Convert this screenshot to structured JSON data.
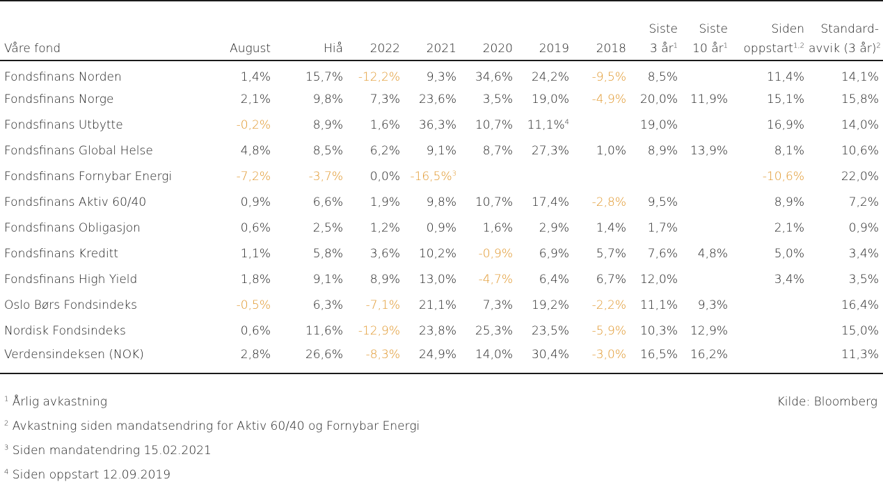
{
  "table": {
    "headers": [
      {
        "line1": "",
        "line2": "Våre fond",
        "sup": ""
      },
      {
        "line1": "",
        "line2": "August",
        "sup": ""
      },
      {
        "line1": "",
        "line2": "Hiå",
        "sup": ""
      },
      {
        "line1": "",
        "line2": "2022",
        "sup": ""
      },
      {
        "line1": "",
        "line2": "2021",
        "sup": ""
      },
      {
        "line1": "",
        "line2": "2020",
        "sup": ""
      },
      {
        "line1": "",
        "line2": "2019",
        "sup": ""
      },
      {
        "line1": "",
        "line2": "2018",
        "sup": ""
      },
      {
        "line1": "Siste",
        "line2": "3 år",
        "sup": "1"
      },
      {
        "line1": "Siste",
        "line2": "10 år",
        "sup": "1"
      },
      {
        "line1": "Siden",
        "line2": "oppstart",
        "sup": "1,2"
      },
      {
        "line1": "Standard-",
        "line2": "avvik (3 år)",
        "sup": "2"
      }
    ],
    "rows": [
      {
        "name": "Fondsfinans Norden",
        "cells": [
          {
            "v": "1,4%"
          },
          {
            "v": "15,7%"
          },
          {
            "v": "-12,2%",
            "neg": true
          },
          {
            "v": "9,3%"
          },
          {
            "v": "34,6%"
          },
          {
            "v": "24,2%"
          },
          {
            "v": "-9,5%",
            "neg": true
          },
          {
            "v": "8,5%"
          },
          {
            "v": ""
          },
          {
            "v": "11,4%"
          },
          {
            "v": "14,1%"
          }
        ]
      },
      {
        "name": "Fondsfinans Norge",
        "cells": [
          {
            "v": "2,1%"
          },
          {
            "v": "9,8%"
          },
          {
            "v": "7,3%"
          },
          {
            "v": "23,6%"
          },
          {
            "v": "3,5%"
          },
          {
            "v": "19,0%"
          },
          {
            "v": "-4,9%",
            "neg": true
          },
          {
            "v": "20,0%"
          },
          {
            "v": "11,9%"
          },
          {
            "v": "15,1%"
          },
          {
            "v": "15,8%"
          }
        ]
      },
      {
        "name": "Fondsfinans Utbytte",
        "cells": [
          {
            "v": "-0,2%",
            "neg": true
          },
          {
            "v": "8,9%"
          },
          {
            "v": "1,6%"
          },
          {
            "v": "36,3%"
          },
          {
            "v": "10,7%"
          },
          {
            "v": "11,1%",
            "sup": "4"
          },
          {
            "v": ""
          },
          {
            "v": "19,0%"
          },
          {
            "v": ""
          },
          {
            "v": "16,9%"
          },
          {
            "v": "14,0%"
          }
        ]
      },
      {
        "name": "Fondsfinans Global Helse",
        "cells": [
          {
            "v": "4,8%"
          },
          {
            "v": "8,5%"
          },
          {
            "v": "6,2%"
          },
          {
            "v": "9,1%"
          },
          {
            "v": "8,7%"
          },
          {
            "v": "27,3%"
          },
          {
            "v": "1,0%"
          },
          {
            "v": "8,9%"
          },
          {
            "v": "13,9%"
          },
          {
            "v": "8,1%"
          },
          {
            "v": "10,6%"
          }
        ]
      },
      {
        "name": "Fondsfinans Fornybar Energi",
        "cells": [
          {
            "v": "-7,2%",
            "neg": true
          },
          {
            "v": "-3,7%",
            "neg": true
          },
          {
            "v": "0,0%"
          },
          {
            "v": "-16,5%",
            "neg": true,
            "sup": "3"
          },
          {
            "v": ""
          },
          {
            "v": ""
          },
          {
            "v": ""
          },
          {
            "v": ""
          },
          {
            "v": ""
          },
          {
            "v": "-10,6%",
            "neg": true
          },
          {
            "v": "22,0%"
          }
        ]
      },
      {
        "name": "Fondsfinans Aktiv 60/40",
        "cells": [
          {
            "v": "0,9%"
          },
          {
            "v": "6,6%"
          },
          {
            "v": "1,9%"
          },
          {
            "v": "9,8%"
          },
          {
            "v": "10,7%"
          },
          {
            "v": "17,4%"
          },
          {
            "v": "-2,8%",
            "neg": true
          },
          {
            "v": "9,5%"
          },
          {
            "v": ""
          },
          {
            "v": "8,9%"
          },
          {
            "v": "7,2%"
          }
        ]
      },
      {
        "name": "Fondsfinans Obligasjon",
        "cells": [
          {
            "v": "0,6%"
          },
          {
            "v": "2,5%"
          },
          {
            "v": "1,2%"
          },
          {
            "v": "0,9%"
          },
          {
            "v": "1,6%"
          },
          {
            "v": "2,9%"
          },
          {
            "v": "1,4%"
          },
          {
            "v": "1,7%"
          },
          {
            "v": ""
          },
          {
            "v": "2,1%"
          },
          {
            "v": "0,9%"
          }
        ]
      },
      {
        "name": "Fondsfinans Kreditt",
        "cells": [
          {
            "v": "1,1%"
          },
          {
            "v": "5,8%"
          },
          {
            "v": "3,6%"
          },
          {
            "v": "10,2%"
          },
          {
            "v": "-0,9%",
            "neg": true
          },
          {
            "v": "6,9%"
          },
          {
            "v": "5,7%"
          },
          {
            "v": "7,6%"
          },
          {
            "v": "4,8%"
          },
          {
            "v": "5,0%"
          },
          {
            "v": "3,4%"
          }
        ]
      },
      {
        "name": "Fondsfinans High Yield",
        "cells": [
          {
            "v": "1,8%"
          },
          {
            "v": "9,1%"
          },
          {
            "v": "8,9%"
          },
          {
            "v": "13,0%"
          },
          {
            "v": "-4,7%",
            "neg": true
          },
          {
            "v": "6,4%"
          },
          {
            "v": "6,7%"
          },
          {
            "v": "12,0%"
          },
          {
            "v": ""
          },
          {
            "v": "3,4%"
          },
          {
            "v": "3,5%"
          }
        ]
      },
      {
        "name": "Oslo Børs Fondsindeks",
        "cells": [
          {
            "v": "-0,5%",
            "neg": true
          },
          {
            "v": "6,3%"
          },
          {
            "v": "-7,1%",
            "neg": true
          },
          {
            "v": "21,1%"
          },
          {
            "v": "7,3%"
          },
          {
            "v": "19,2%"
          },
          {
            "v": "-2,2%",
            "neg": true
          },
          {
            "v": "11,1%"
          },
          {
            "v": "9,3%"
          },
          {
            "v": ""
          },
          {
            "v": "16,4%"
          }
        ]
      },
      {
        "name": "Nordisk Fondsindeks",
        "cells": [
          {
            "v": "0,6%"
          },
          {
            "v": "11,6%"
          },
          {
            "v": "-12,9%",
            "neg": true
          },
          {
            "v": "23,8%"
          },
          {
            "v": "25,3%"
          },
          {
            "v": "23,5%"
          },
          {
            "v": "-5,9%",
            "neg": true
          },
          {
            "v": "10,3%"
          },
          {
            "v": "12,9%"
          },
          {
            "v": ""
          },
          {
            "v": "15,0%"
          }
        ]
      },
      {
        "name": "Verdensindeksen (NOK)",
        "cells": [
          {
            "v": "2,8%"
          },
          {
            "v": "26,6%"
          },
          {
            "v": "-8,3%",
            "neg": true
          },
          {
            "v": "24,9%"
          },
          {
            "v": "14,0%"
          },
          {
            "v": "30,4%"
          },
          {
            "v": "-3,0%",
            "neg": true
          },
          {
            "v": "16,5%"
          },
          {
            "v": "16,2%"
          },
          {
            "v": ""
          },
          {
            "v": "11,3%"
          }
        ]
      }
    ]
  },
  "footnotes": [
    {
      "num": "1",
      "text": "Årlig avkastning"
    },
    {
      "num": "2",
      "text": "Avkastning siden mandatsendring for Aktiv 60/40 og Fornybar Energi"
    },
    {
      "num": "3",
      "text": "Siden mandatendring 15.02.2021"
    },
    {
      "num": "4",
      "text": "Siden oppstart 12.09.2019"
    }
  ],
  "source": "Kilde: Bloomberg",
  "colors": {
    "negative": "#e0962a",
    "text": "#1a1a1a"
  }
}
